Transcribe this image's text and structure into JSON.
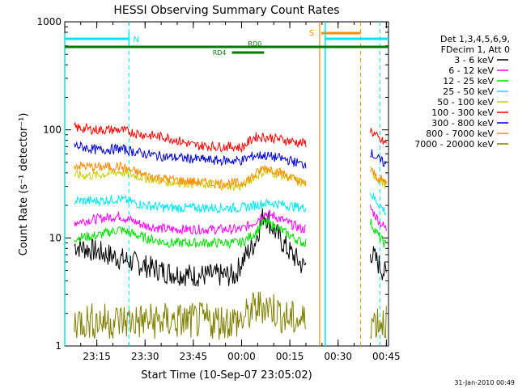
{
  "chart_data": {
    "type": "line",
    "title": "HESSI Observing Summary Count Rates",
    "xlabel": "Start Time (10-Sep-07 23:05:02)",
    "ylabel": "Count Rate (s⁻¹ detector⁻¹)",
    "y_scale": "log",
    "ylim": [
      1,
      1000
    ],
    "xlim": [
      "23:05:02",
      "00:45:40"
    ],
    "x_ticks": [
      "23:15",
      "23:30",
      "23:45",
      "00:00",
      "00:15",
      "00:30",
      "00:45"
    ],
    "y_ticks": [
      "1",
      "10",
      "100",
      "1000"
    ],
    "legend_position": "right",
    "legend_header": [
      "Det 1,3,4,5,6,9,",
      "FDecim 1, Att 0"
    ],
    "timestamp": "31-Jan-2010 00:49",
    "annotations": {
      "N": {
        "label": "N",
        "start": "23:05",
        "end": "23:25",
        "color": "#00e5ee"
      },
      "S": {
        "label": "S",
        "start": "00:23",
        "end": "00:37",
        "color": "#ff8c00"
      },
      "RD0": {
        "label": "RD0",
        "color": "#007a00"
      },
      "RD4": {
        "label": "RD4",
        "color": "#007a00"
      }
    },
    "x": [
      "23:08",
      "23:15",
      "23:22",
      "23:30",
      "23:37",
      "23:45",
      "23:52",
      "23:58",
      "00:00",
      "00:04",
      "00:07",
      "00:10",
      "00:14",
      "00:19",
      "00:40",
      "00:43",
      "00:45"
    ],
    "series": [
      {
        "name": "3 - 6 keV",
        "color": "#000000",
        "values": [
          8.5,
          7.5,
          6.5,
          5.5,
          4.8,
          4.5,
          4.5,
          4.5,
          6,
          9,
          17,
          12,
          8,
          5.5,
          7.5,
          5.5,
          4.5
        ]
      },
      {
        "name": "6 - 12 keV",
        "color": "#ff00ff",
        "values": [
          14,
          15,
          16,
          13,
          12,
          12,
          12,
          12,
          12,
          14,
          17,
          16,
          14,
          12,
          19,
          14,
          12
        ]
      },
      {
        "name": "12 - 25 keV",
        "color": "#00dd00",
        "values": [
          10,
          10.5,
          12,
          10,
          9,
          9,
          9,
          9,
          9,
          11,
          14,
          13,
          11,
          9,
          14,
          10,
          8.5
        ]
      },
      {
        "name": "25 - 50 keV",
        "color": "#00e5ee",
        "values": [
          22,
          22,
          23,
          20,
          19,
          19,
          19,
          19,
          19,
          20,
          21,
          21,
          20,
          19,
          26,
          20,
          17
        ]
      },
      {
        "name": "50 - 100 keV",
        "color": "#cccc00",
        "values": [
          38,
          38,
          41,
          36,
          33,
          32,
          31,
          30,
          30,
          37,
          41,
          40,
          37,
          32,
          42,
          34,
          31
        ]
      },
      {
        "name": "100 - 300 keV",
        "color": "#ff0000",
        "values": [
          105,
          100,
          100,
          90,
          85,
          72,
          70,
          70,
          68,
          86,
          86,
          84,
          80,
          75,
          100,
          80,
          75
        ]
      },
      {
        "name": "300 - 800 keV",
        "color": "#0000cc",
        "values": [
          72,
          65,
          67,
          60,
          56,
          54,
          52,
          52,
          52,
          58,
          58,
          56,
          53,
          48,
          62,
          52,
          48
        ]
      },
      {
        "name": "800 - 7000 keV",
        "color": "#ff8c00",
        "values": [
          47,
          45,
          46,
          38,
          35,
          33,
          32,
          32,
          32,
          38,
          45,
          43,
          38,
          32,
          42,
          35,
          32
        ]
      },
      {
        "name": "7000 - 20000 keV",
        "color": "#808000",
        "values": [
          1.7,
          1.7,
          1.7,
          1.7,
          1.7,
          1.7,
          1.7,
          1.7,
          1.7,
          2.2,
          2.4,
          2.2,
          1.8,
          1.7,
          1.7,
          1.7,
          1.7
        ]
      }
    ]
  }
}
